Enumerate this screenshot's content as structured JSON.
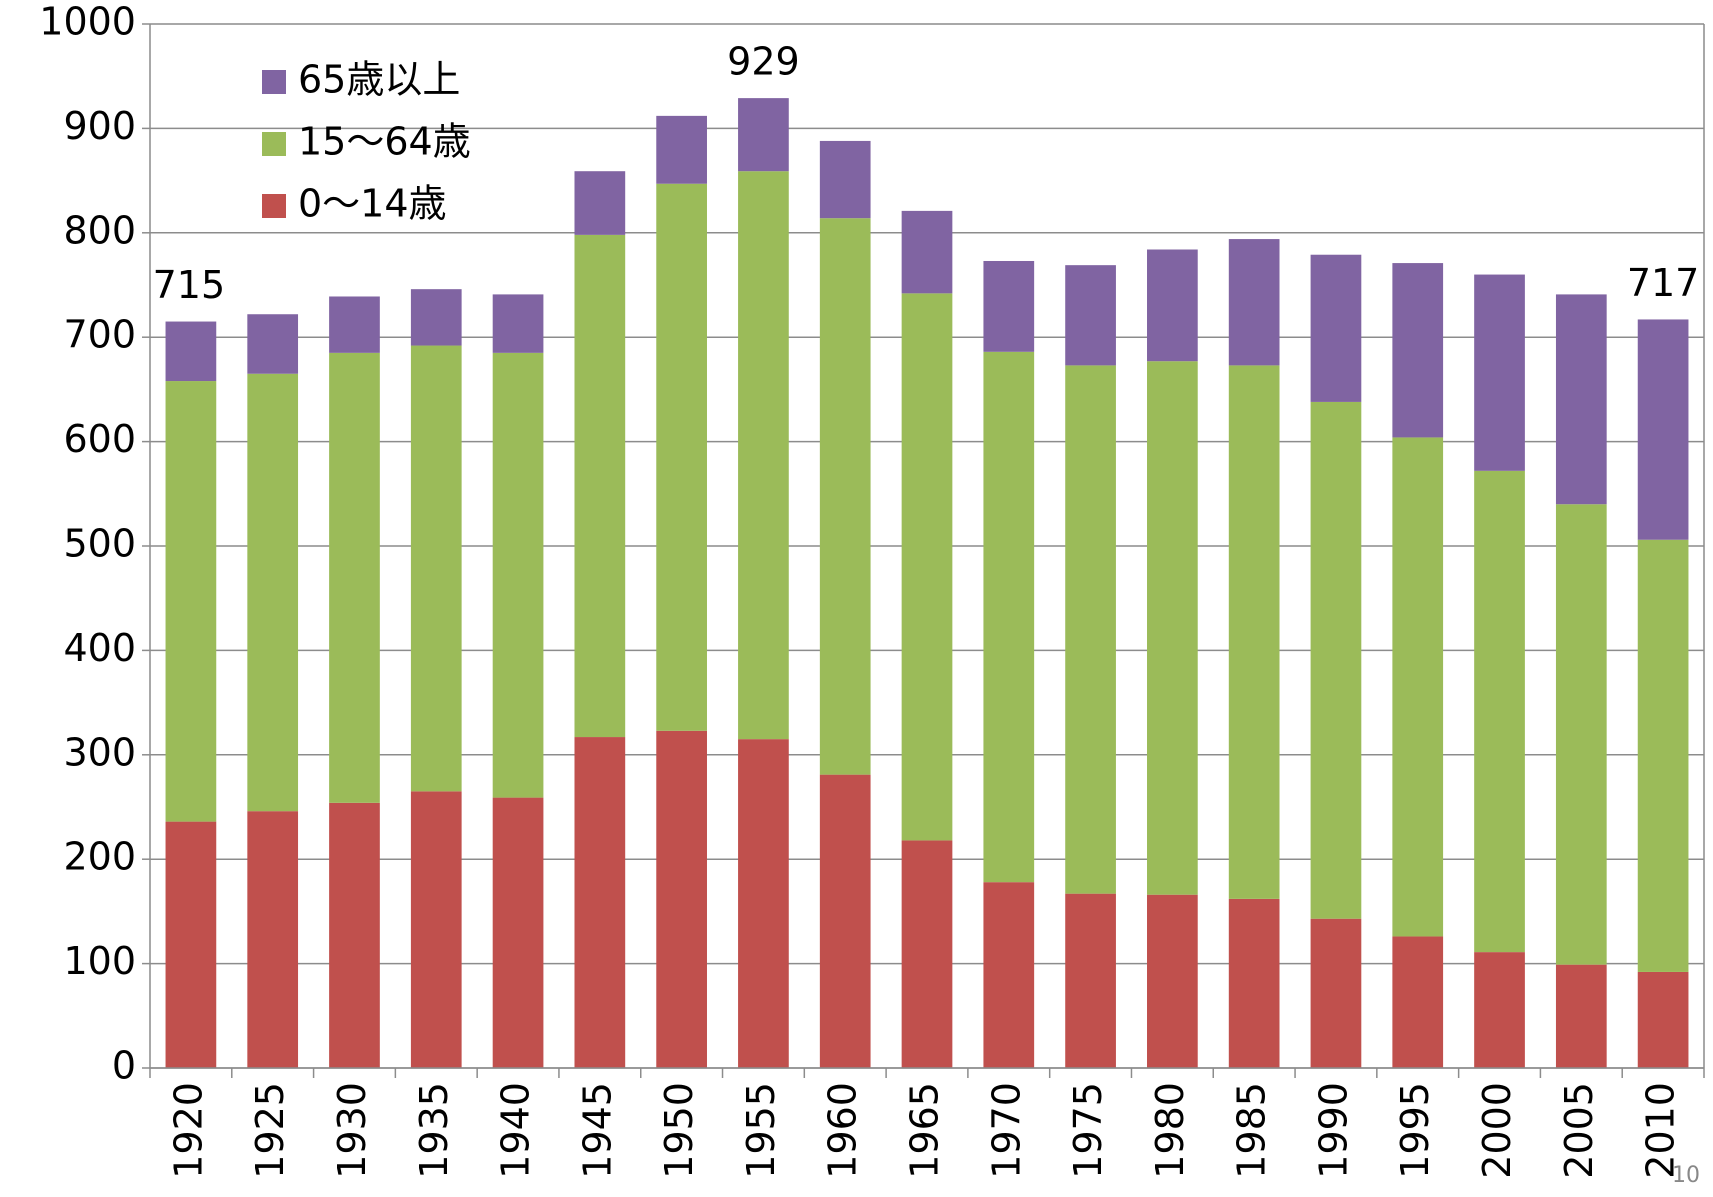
{
  "chart_data": {
    "type": "stacked_bar",
    "categories": [
      "1920",
      "1925",
      "1930",
      "1935",
      "1940",
      "1945",
      "1950",
      "1955",
      "1960",
      "1965",
      "1970",
      "1975",
      "1980",
      "1985",
      "1990",
      "1995",
      "2000",
      "2005",
      "2010"
    ],
    "series": [
      {
        "name": "0～14歳",
        "color": "#c0504d",
        "values": [
          236,
          246,
          254,
          265,
          259,
          317,
          323,
          315,
          281,
          218,
          178,
          167,
          166,
          162,
          143,
          126,
          111,
          99,
          92
        ]
      },
      {
        "name": "15～64歳",
        "color": "#9bbb59",
        "values": [
          422,
          419,
          431,
          427,
          426,
          481,
          524,
          544,
          533,
          524,
          508,
          506,
          511,
          511,
          495,
          478,
          461,
          441,
          414
        ]
      },
      {
        "name": "65歳以上",
        "color": "#8064a2",
        "values": [
          57,
          57,
          54,
          54,
          56,
          61,
          65,
          70,
          74,
          79,
          87,
          96,
          107,
          121,
          141,
          167,
          188,
          201,
          211
        ]
      }
    ],
    "annotations": [
      {
        "category": "1920",
        "value": 715
      },
      {
        "category": "1955",
        "value": 929
      },
      {
        "category": "2010",
        "value": 717
      }
    ],
    "ylim": [
      0,
      1000
    ],
    "yticks": [
      0,
      100,
      200,
      300,
      400,
      500,
      600,
      700,
      800,
      900,
      1000
    ],
    "grid": true,
    "page_number": "10"
  }
}
